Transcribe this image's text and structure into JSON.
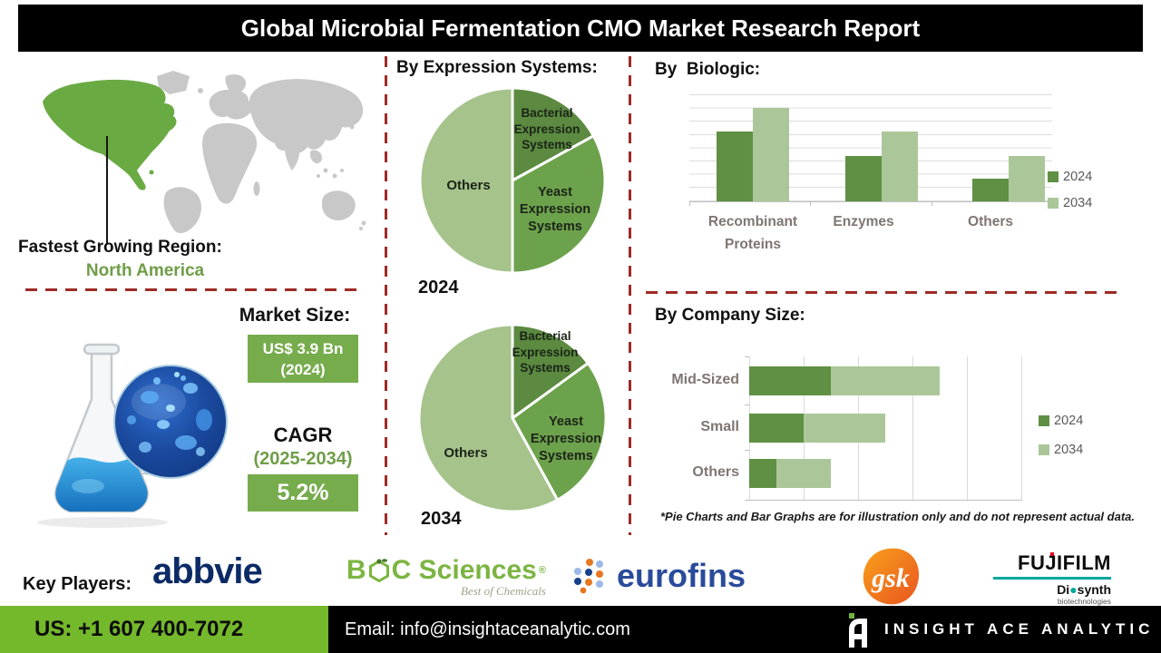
{
  "title": "Global Microbial Fermentation CMO Market Research Report",
  "left": {
    "fastest_region_label": "Fastest Growing Region:",
    "fastest_region_value": "North America",
    "market_size_label": "Market Size:",
    "market_size_line1": "US$ 3.9 Bn",
    "market_size_line2": "(2024)",
    "cagr_label": "CAGR",
    "cagr_period": "(2025-2034)",
    "cagr_value": "5.2%"
  },
  "middle": {
    "heading": "By Expression Systems:"
  },
  "chart_data": [
    {
      "id": "expression_2024",
      "type": "pie",
      "title": "By Expression Systems:",
      "year_label": "2024",
      "slices": [
        {
          "label": "Bacterial Expression Systems",
          "value": 17,
          "color": "#5b8a40"
        },
        {
          "label": "Yeast Expression Systems",
          "value": 33,
          "color": "#6da24c"
        },
        {
          "label": "Others",
          "value": 50,
          "color": "#a5c38b"
        }
      ]
    },
    {
      "id": "expression_2034",
      "type": "pie",
      "title": "By Expression Systems:",
      "year_label": "2034",
      "slices": [
        {
          "label": "Bacterial Expression Systems",
          "value": 15,
          "color": "#5b8a40"
        },
        {
          "label": "Yeast Expression Systems",
          "value": 27,
          "color": "#6da24c"
        },
        {
          "label": "Others",
          "value": 58,
          "color": "#a5c38b"
        }
      ]
    },
    {
      "id": "biologic",
      "type": "bar",
      "title": "By  Biologic:",
      "categories": [
        "Recombinant Proteins",
        "Enzymes",
        "Others"
      ],
      "series": [
        {
          "name": "2024",
          "color": "#5f9043",
          "values": [
            6.5,
            4.2,
            2.1
          ]
        },
        {
          "name": "2034",
          "color": "#abc79a",
          "values": [
            8.7,
            6.5,
            4.2
          ]
        }
      ],
      "ylim": [
        0,
        10
      ],
      "grid": true,
      "legend_position": "right",
      "note": "illustration only"
    },
    {
      "id": "company_size",
      "type": "bar",
      "orientation": "horizontal",
      "stacked": true,
      "title": "By Company Size:",
      "categories": [
        "Mid-Sized",
        "Small",
        "Others"
      ],
      "series": [
        {
          "name": "2024",
          "color": "#5f9043",
          "values": [
            1.5,
            1.0,
            0.5
          ]
        },
        {
          "name": "2034",
          "color": "#abc79a",
          "values": [
            2.0,
            1.5,
            1.0
          ]
        }
      ],
      "xlim": [
        0,
        5
      ],
      "grid": true,
      "legend_position": "right",
      "note": "illustration only"
    }
  ],
  "right": {
    "footnote": "*Pie Charts and Bar Graphs are for illustration only and do not represent actual data."
  },
  "key_players": {
    "label": "Key Players:",
    "abbvie": "abbvie",
    "boc_b": "B",
    "boc_rest": "C Sciences",
    "boc_reg": "®",
    "boc_tagline": "Best of Chemicals",
    "eurofins": "eurofins",
    "gsk": "gsk",
    "fujifilm": "FUJIFILM",
    "diosynth_left": "Di",
    "diosynth_dot": "●",
    "diosynth_right": "synth",
    "biotech": "biotechnologies"
  },
  "footer": {
    "phone": "US: +1 607 400-7072",
    "email": "Email: info@insightaceanalytic.com",
    "brand": "INSIGHT ACE ANALYTIC"
  }
}
